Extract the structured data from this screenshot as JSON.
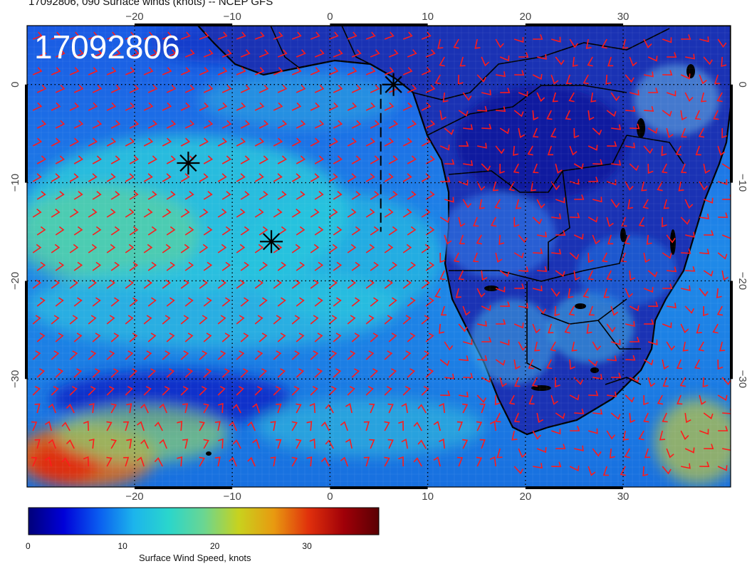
{
  "title": "17092806, 090 Surface winds (knots) -- NCEP GFS",
  "stamp": "17092806",
  "map": {
    "lon_range": [
      -31,
      41
    ],
    "lat_range": [
      -41,
      6
    ],
    "lon_ticks": [
      -20,
      -10,
      0,
      10,
      20,
      30
    ],
    "lat_ticks": [
      0,
      -10,
      -20,
      -30
    ],
    "lon_tick_labels": [
      "−20",
      "−10",
      "0",
      "10",
      "20",
      "30"
    ],
    "lat_tick_labels": [
      "0",
      "−10",
      "−20",
      "−30"
    ],
    "gridlines": "dotted",
    "field": "surface wind speed",
    "wind_barbs_color": "#ff1a1a",
    "markers": [
      {
        "symbol": "asterisk",
        "lon": 6.5,
        "lat": 0.0
      },
      {
        "symbol": "asterisk",
        "lon": -14.5,
        "lat": -8.0
      },
      {
        "symbol": "asterisk",
        "lon": -6.0,
        "lat": -16.0
      }
    ],
    "dashed_track": [
      {
        "lon": 5.2,
        "lat": 0.0
      },
      {
        "lon": 5.2,
        "lat": -15.0
      }
    ]
  },
  "colorbar": {
    "title": "Surface Wind Speed, knots",
    "range": [
      0,
      38
    ],
    "ticks": [
      0,
      10,
      20,
      30
    ],
    "colors": [
      "#00007a",
      "#0000d8",
      "#0a5cf0",
      "#1cb4ec",
      "#2ad6cc",
      "#6ad692",
      "#c8d21e",
      "#e89a10",
      "#e0300c",
      "#a00008",
      "#5a0004"
    ]
  }
}
